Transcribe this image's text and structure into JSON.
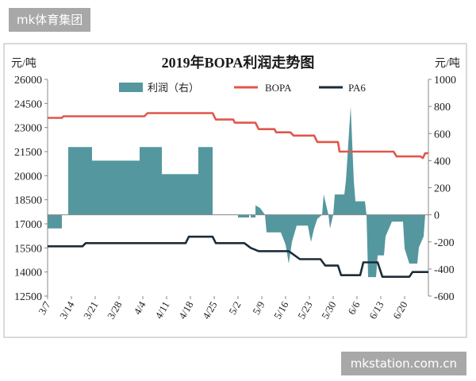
{
  "header": {
    "site_badge": "mk体育集团"
  },
  "footer": {
    "watermark": "mkstation.com.cn"
  },
  "chart_data": {
    "type": "line",
    "title": "2019年BOPA利润走势图",
    "left_unit": "元/吨",
    "right_unit": "元/吨",
    "left_axis": {
      "ylim": [
        12500,
        26000
      ],
      "ticks": [
        12500,
        14000,
        15500,
        17000,
        18500,
        20000,
        21500,
        23000,
        24500,
        26000
      ]
    },
    "right_axis": {
      "ylim": [
        -600,
        1000
      ],
      "ticks": [
        -600,
        -400,
        -200,
        0,
        200,
        400,
        600,
        800,
        1000
      ]
    },
    "x_tick_labels": [
      "3/7",
      "3/14",
      "3/21",
      "3/28",
      "4/4",
      "4/11",
      "4/18",
      "4/25",
      "5/2",
      "5/9",
      "5/16",
      "5/23",
      "5/30",
      "6/6",
      "6/13",
      "6/20"
    ],
    "legend": [
      "利润（右）",
      "BOPA",
      "PA6"
    ],
    "colors": {
      "profit": "#55979f",
      "bopa": "#e0574b",
      "pa6": "#1c2c38"
    },
    "series": [
      {
        "name": "利润（右）",
        "type": "area",
        "axis": "right",
        "points": [
          [
            0.0,
            -100
          ],
          [
            1.8,
            -100
          ],
          [
            1.8,
            0
          ],
          [
            2.6,
            0
          ],
          [
            2.6,
            500
          ],
          [
            5.6,
            500
          ],
          [
            5.6,
            400
          ],
          [
            11.6,
            400
          ],
          [
            11.6,
            500
          ],
          [
            14.4,
            500
          ],
          [
            14.4,
            300
          ],
          [
            19.0,
            300
          ],
          [
            19.0,
            500
          ],
          [
            20.8,
            500
          ],
          [
            20.8,
            0
          ],
          [
            24.0,
            0
          ],
          [
            24.0,
            -20
          ],
          [
            25.4,
            -20
          ],
          [
            25.4,
            0
          ],
          [
            25.6,
            0
          ],
          [
            25.6,
            -20
          ],
          [
            26.2,
            -20
          ],
          [
            26.2,
            70
          ],
          [
            26.8,
            50
          ],
          [
            27.4,
            0
          ],
          [
            27.6,
            -130
          ],
          [
            29.4,
            -130
          ],
          [
            30.0,
            -220
          ],
          [
            30.4,
            -360
          ],
          [
            30.8,
            -200
          ],
          [
            31.4,
            -80
          ],
          [
            32.8,
            -80
          ],
          [
            33.2,
            -200
          ],
          [
            33.6,
            -100
          ],
          [
            34.0,
            -30
          ],
          [
            34.4,
            -10
          ],
          [
            34.6,
            0
          ],
          [
            34.8,
            150
          ],
          [
            35.4,
            0
          ],
          [
            35.6,
            -100
          ],
          [
            36.0,
            0
          ],
          [
            36.2,
            150
          ],
          [
            37.4,
            150
          ],
          [
            37.6,
            250
          ],
          [
            38.2,
            800
          ],
          [
            38.6,
            250
          ],
          [
            38.8,
            100
          ],
          [
            40.0,
            100
          ],
          [
            40.2,
            0
          ],
          [
            40.4,
            -460
          ],
          [
            41.4,
            -460
          ],
          [
            41.6,
            -300
          ],
          [
            42.4,
            -300
          ],
          [
            42.6,
            -160
          ],
          [
            43.4,
            -50
          ],
          [
            44.8,
            -50
          ],
          [
            45.0,
            -250
          ],
          [
            45.6,
            -360
          ],
          [
            46.6,
            -360
          ],
          [
            46.8,
            -240
          ],
          [
            47.4,
            -160
          ],
          [
            47.6,
            0
          ],
          [
            48.0,
            0
          ]
        ]
      },
      {
        "name": "BOPA",
        "type": "line",
        "axis": "left",
        "points": [
          [
            0.0,
            23600
          ],
          [
            1.8,
            23600
          ],
          [
            2.0,
            23700
          ],
          [
            12.2,
            23700
          ],
          [
            12.6,
            23900
          ],
          [
            20.8,
            23900
          ],
          [
            21.2,
            23500
          ],
          [
            23.4,
            23500
          ],
          [
            23.6,
            23300
          ],
          [
            26.2,
            23300
          ],
          [
            26.6,
            22900
          ],
          [
            28.6,
            22900
          ],
          [
            28.8,
            22700
          ],
          [
            30.6,
            22700
          ],
          [
            31.0,
            22500
          ],
          [
            33.6,
            22500
          ],
          [
            34.0,
            22100
          ],
          [
            36.6,
            22100
          ],
          [
            36.8,
            21500
          ],
          [
            43.6,
            21500
          ],
          [
            44.0,
            21200
          ],
          [
            47.0,
            21200
          ],
          [
            47.3,
            21100
          ],
          [
            47.6,
            21400
          ],
          [
            48.0,
            21400
          ]
        ]
      },
      {
        "name": "PA6",
        "type": "line",
        "axis": "left",
        "points": [
          [
            0.0,
            15600
          ],
          [
            4.4,
            15600
          ],
          [
            4.8,
            15800
          ],
          [
            17.4,
            15800
          ],
          [
            17.8,
            16200
          ],
          [
            20.8,
            16200
          ],
          [
            21.2,
            15800
          ],
          [
            24.8,
            15800
          ],
          [
            25.6,
            15500
          ],
          [
            26.6,
            15300
          ],
          [
            30.4,
            15300
          ],
          [
            31.8,
            14800
          ],
          [
            34.4,
            14800
          ],
          [
            35.0,
            14400
          ],
          [
            36.6,
            14400
          ],
          [
            37.0,
            13800
          ],
          [
            39.4,
            13800
          ],
          [
            39.8,
            14600
          ],
          [
            41.6,
            14600
          ],
          [
            42.2,
            13700
          ],
          [
            45.6,
            13700
          ],
          [
            46.0,
            14000
          ],
          [
            48.0,
            14000
          ]
        ]
      }
    ]
  }
}
